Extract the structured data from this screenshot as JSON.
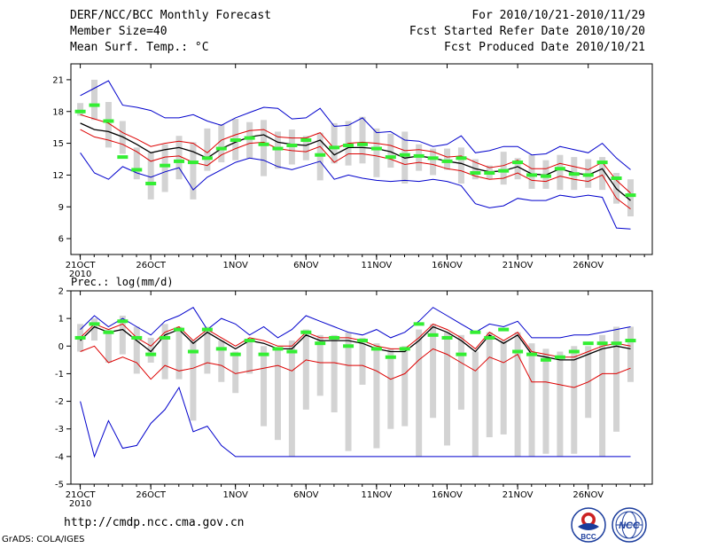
{
  "header": {
    "title": "DERF/NCC/BCC Monthly Forecast",
    "member_size": "Member Size=40",
    "variable1": "Mean Surf. Temp.: °C",
    "period": "For 2010/10/21-2010/11/29",
    "fcst_started": "Fcst Started Refer Date 2010/10/20",
    "fcst_produced": "Fcst Produced Date 2010/10/21"
  },
  "footer": {
    "url": "http://cmdp.ncc.cma.gov.cn",
    "credit": "GrADS: COLA/IGES",
    "logo_bcc_text": "BCC",
    "logo_ncc_text": "NCC"
  },
  "colors": {
    "envelope": "#0000cc",
    "spread": "#dd0000",
    "mean": "#000000",
    "box": "#d3d3d3",
    "observed": "#33ee33",
    "axis": "#000000"
  },
  "chart_data": [
    {
      "type": "line",
      "title": "Mean Surf. Temp.: °C",
      "ylim": [
        4.5,
        22.5
      ],
      "yticks": [
        6,
        9,
        12,
        15,
        18,
        21
      ],
      "xticks": [
        {
          "day": 0,
          "label": "21OCT"
        },
        {
          "day": 5,
          "label": "26OCT"
        },
        {
          "day": 11,
          "label": "1NOV"
        },
        {
          "day": 16,
          "label": "6NOV"
        },
        {
          "day": 21,
          "label": "11NOV"
        },
        {
          "day": 26,
          "label": "16NOV"
        },
        {
          "day": 31,
          "label": "21NOV"
        },
        {
          "day": 36,
          "label": "26NOV"
        }
      ],
      "year_label": "2010",
      "days": 40,
      "series": [
        {
          "name": "max",
          "values": [
            19.5,
            20.2,
            20.9,
            18.6,
            18.4,
            18.1,
            17.4,
            17.4,
            17.7,
            17.1,
            16.7,
            17.4,
            17.9,
            18.4,
            18.3,
            17.3,
            17.4,
            18.3,
            16.6,
            16.7,
            17.4,
            16.0,
            16.1,
            15.3,
            15.2,
            14.7,
            14.9,
            15.7,
            14.1,
            14.3,
            14.7,
            14.7,
            13.9,
            14.0,
            14.7,
            14.4,
            14.1,
            15.0,
            13.6,
            12.5
          ]
        },
        {
          "name": "ensemble-high",
          "values": [
            17.7,
            17.3,
            16.9,
            16.0,
            15.4,
            14.7,
            15.0,
            15.2,
            15.0,
            14.1,
            15.3,
            15.8,
            16.2,
            16.3,
            15.6,
            15.5,
            15.5,
            16.0,
            14.5,
            15.0,
            15.1,
            15.0,
            14.8,
            14.3,
            14.4,
            14.2,
            13.7,
            13.8,
            13.2,
            12.7,
            12.9,
            13.4,
            12.6,
            12.6,
            13.1,
            12.8,
            12.5,
            13.2,
            11.5,
            10.3
          ]
        },
        {
          "name": "ensemble-mean",
          "values": [
            16.9,
            16.3,
            16.1,
            15.6,
            14.9,
            14.1,
            14.4,
            14.6,
            14.2,
            13.6,
            14.5,
            15.1,
            15.6,
            15.8,
            15.1,
            14.9,
            14.8,
            15.3,
            13.9,
            14.6,
            14.6,
            14.5,
            14.2,
            13.6,
            13.8,
            13.6,
            13.3,
            13.1,
            12.6,
            12.3,
            12.4,
            12.8,
            12.1,
            12.0,
            12.6,
            12.2,
            12.0,
            12.6,
            10.7,
            9.6
          ]
        },
        {
          "name": "ensemble-low",
          "values": [
            16.3,
            15.6,
            15.3,
            14.9,
            14.2,
            13.3,
            13.7,
            13.8,
            13.2,
            12.9,
            13.9,
            14.5,
            15.0,
            15.1,
            14.5,
            14.3,
            14.2,
            14.7,
            13.2,
            14.0,
            14.0,
            13.8,
            13.5,
            13.0,
            13.2,
            13.0,
            12.6,
            12.4,
            11.9,
            11.6,
            11.7,
            12.2,
            11.5,
            11.4,
            11.9,
            11.6,
            11.4,
            12.0,
            9.8,
            8.8
          ]
        },
        {
          "name": "min",
          "values": [
            14.1,
            12.2,
            11.6,
            12.8,
            12.2,
            11.8,
            12.3,
            12.7,
            10.6,
            11.8,
            12.5,
            13.2,
            13.6,
            13.4,
            12.8,
            12.5,
            12.9,
            13.3,
            11.6,
            12.0,
            11.7,
            11.5,
            11.4,
            11.5,
            11.4,
            11.6,
            11.4,
            11.0,
            9.3,
            8.9,
            9.1,
            9.8,
            9.6,
            9.6,
            10.1,
            9.9,
            10.1,
            9.9,
            7.0,
            6.9
          ]
        },
        {
          "name": "observed",
          "values": [
            18.0,
            18.6,
            17.1,
            13.7,
            12.5,
            11.2,
            12.9,
            13.3,
            13.2,
            13.6,
            14.5,
            15.3,
            15.5,
            14.9,
            14.5,
            14.8,
            15.3,
            13.9,
            14.6,
            14.8,
            14.9,
            14.5,
            13.7,
            13.9,
            13.8,
            13.6,
            13.3,
            13.6,
            12.2,
            12.2,
            12.4,
            13.2,
            12.0,
            11.9,
            12.6,
            12.1,
            12.0,
            13.2,
            11.7,
            10.1
          ]
        }
      ],
      "boxes": [
        [
          17.6,
          18.8
        ],
        [
          17.2,
          21.0
        ],
        [
          14.6,
          18.9
        ],
        [
          14.0,
          17.1
        ],
        [
          11.6,
          14.6
        ],
        [
          9.7,
          14.1
        ],
        [
          10.4,
          14.9
        ],
        [
          11.6,
          15.7
        ],
        [
          9.7,
          15.1
        ],
        [
          12.4,
          16.4
        ],
        [
          13.2,
          16.8
        ],
        [
          13.4,
          17.3
        ],
        [
          13.6,
          17.0
        ],
        [
          11.9,
          17.2
        ],
        [
          12.6,
          16.1
        ],
        [
          13.0,
          16.3
        ],
        [
          13.4,
          15.7
        ],
        [
          11.5,
          16.0
        ],
        [
          13.1,
          16.9
        ],
        [
          12.9,
          17.1
        ],
        [
          13.1,
          17.5
        ],
        [
          11.8,
          16.4
        ],
        [
          12.7,
          15.9
        ],
        [
          11.2,
          16.1
        ],
        [
          12.4,
          14.9
        ],
        [
          12.0,
          14.5
        ],
        [
          12.5,
          14.5
        ],
        [
          11.2,
          14.6
        ],
        [
          11.6,
          13.5
        ],
        [
          11.6,
          12.9
        ],
        [
          11.1,
          14.2
        ],
        [
          11.6,
          13.6
        ],
        [
          10.7,
          13.9
        ],
        [
          10.7,
          13.4
        ],
        [
          10.6,
          13.9
        ],
        [
          10.6,
          13.7
        ],
        [
          10.8,
          13.5
        ],
        [
          10.6,
          13.7
        ],
        [
          9.3,
          12.2
        ],
        [
          8.1,
          11.6
        ]
      ]
    },
    {
      "type": "line",
      "title": "Prec.: log(mm/d)",
      "ylim": [
        -5,
        2
      ],
      "yticks": [
        -5,
        -4,
        -3,
        -2,
        -1,
        0,
        1,
        2
      ],
      "xticks": [
        {
          "day": 0,
          "label": "21OCT"
        },
        {
          "day": 5,
          "label": "26OCT"
        },
        {
          "day": 11,
          "label": "1NOV"
        },
        {
          "day": 16,
          "label": "6NOV"
        },
        {
          "day": 21,
          "label": "11NOV"
        },
        {
          "day": 26,
          "label": "16NOV"
        },
        {
          "day": 31,
          "label": "21NOV"
        },
        {
          "day": 36,
          "label": "26NOV"
        }
      ],
      "year_label": "2010",
      "days": 40,
      "series": [
        {
          "name": "max",
          "values": [
            0.6,
            1.1,
            0.7,
            1.0,
            0.7,
            0.4,
            0.9,
            1.1,
            1.4,
            0.6,
            1.0,
            0.8,
            0.4,
            0.7,
            0.3,
            0.6,
            1.1,
            0.9,
            0.7,
            0.5,
            0.4,
            0.6,
            0.3,
            0.5,
            0.9,
            1.4,
            1.1,
            0.8,
            0.5,
            0.8,
            0.7,
            0.9,
            0.3,
            0.3,
            0.3,
            0.4,
            0.4,
            0.5,
            0.6,
            0.7
          ]
        },
        {
          "name": "ensemble-high",
          "values": [
            0.3,
            0.8,
            0.6,
            0.8,
            0.3,
            0.0,
            0.5,
            0.7,
            0.2,
            0.6,
            0.3,
            0.0,
            0.3,
            0.2,
            0.0,
            0.0,
            0.5,
            0.3,
            0.3,
            0.3,
            0.2,
            0.0,
            -0.1,
            -0.1,
            0.3,
            0.8,
            0.6,
            0.3,
            -0.1,
            0.5,
            0.2,
            0.5,
            -0.2,
            -0.3,
            -0.4,
            -0.4,
            -0.2,
            0.0,
            0.1,
            0.0
          ]
        },
        {
          "name": "ensemble-mean",
          "values": [
            0.2,
            0.7,
            0.5,
            0.6,
            0.2,
            -0.2,
            0.4,
            0.6,
            0.1,
            0.5,
            0.2,
            -0.1,
            0.2,
            0.1,
            -0.1,
            -0.1,
            0.4,
            0.2,
            0.2,
            0.2,
            0.1,
            -0.1,
            -0.2,
            -0.2,
            0.2,
            0.7,
            0.5,
            0.2,
            -0.2,
            0.4,
            0.1,
            0.4,
            -0.3,
            -0.4,
            -0.5,
            -0.5,
            -0.3,
            -0.1,
            0.0,
            -0.1
          ]
        },
        {
          "name": "ensemble-low",
          "values": [
            -0.2,
            0.0,
            -0.6,
            -0.4,
            -0.6,
            -1.2,
            -0.7,
            -0.9,
            -0.8,
            -0.6,
            -0.7,
            -1.0,
            -0.9,
            -0.8,
            -0.7,
            -0.9,
            -0.5,
            -0.6,
            -0.6,
            -0.7,
            -0.7,
            -0.9,
            -1.2,
            -1.0,
            -0.5,
            -0.1,
            -0.3,
            -0.6,
            -0.9,
            -0.4,
            -0.6,
            -0.3,
            -1.3,
            -1.3,
            -1.4,
            -1.5,
            -1.3,
            -1.0,
            -1.0,
            -0.8
          ]
        },
        {
          "name": "min",
          "values": [
            -2.0,
            -4.0,
            -2.7,
            -3.7,
            -3.6,
            -2.8,
            -2.3,
            -1.5,
            -3.1,
            -2.9,
            -3.6,
            -4.0,
            -4.0,
            -4.0,
            -4.0,
            -4.0,
            -4.0,
            -4.0,
            -4.0,
            -4.0,
            -4.0,
            -4.0,
            -4.0,
            -4.0,
            -4.0,
            -4.0,
            -4.0,
            -4.0,
            -4.0,
            -4.0,
            -4.0,
            -4.0,
            -4.0,
            -4.0,
            -4.0,
            -4.0,
            -4.0,
            -4.0,
            -4.0,
            -4.0
          ]
        },
        {
          "name": "observed",
          "values": [
            0.3,
            0.8,
            0.5,
            0.9,
            0.3,
            -0.3,
            0.3,
            0.6,
            -0.2,
            0.6,
            -0.1,
            -0.3,
            0.2,
            -0.3,
            -0.1,
            -0.2,
            0.5,
            0.1,
            0.3,
            0.0,
            0.2,
            -0.1,
            -0.4,
            -0.1,
            0.8,
            0.4,
            0.3,
            -0.3,
            0.5,
            0.3,
            0.6,
            -0.2,
            -0.3,
            -0.5,
            -0.4,
            -0.2,
            0.1,
            0.1,
            0.1,
            0.2
          ]
        }
      ],
      "boxes": [
        [
          -0.2,
          0.8
        ],
        [
          0.2,
          1.0
        ],
        [
          -0.6,
          0.6
        ],
        [
          -0.3,
          1.1
        ],
        [
          -1.0,
          0.7
        ],
        [
          -0.6,
          0.3
        ],
        [
          -1.2,
          0.8
        ],
        [
          -1.2,
          0.7
        ],
        [
          -2.7,
          0.2
        ],
        [
          -1.0,
          0.7
        ],
        [
          -1.3,
          0.2
        ],
        [
          -1.7,
          -0.2
        ],
        [
          -1.0,
          0.2
        ],
        [
          -2.9,
          0.0
        ],
        [
          -3.4,
          -0.1
        ],
        [
          -4.0,
          0.2
        ],
        [
          -2.3,
          0.6
        ],
        [
          -1.8,
          0.4
        ],
        [
          -2.4,
          0.4
        ],
        [
          -3.8,
          0.5
        ],
        [
          -1.4,
          0.3
        ],
        [
          -3.7,
          0.1
        ],
        [
          -3.0,
          -0.1
        ],
        [
          -2.9,
          0.0
        ],
        [
          -4.0,
          0.6
        ],
        [
          -2.6,
          0.8
        ],
        [
          -3.6,
          0.5
        ],
        [
          -2.3,
          0.4
        ],
        [
          -4.0,
          -0.2
        ],
        [
          -3.3,
          0.5
        ],
        [
          -3.2,
          0.2
        ],
        [
          -4.0,
          0.5
        ],
        [
          -4.0,
          0.1
        ],
        [
          -3.9,
          -0.1
        ],
        [
          -4.0,
          -0.2
        ],
        [
          -3.9,
          0.0
        ],
        [
          -2.6,
          0.0
        ],
        [
          -4.0,
          0.4
        ],
        [
          -3.1,
          0.7
        ],
        [
          -1.3,
          0.7
        ]
      ]
    }
  ]
}
